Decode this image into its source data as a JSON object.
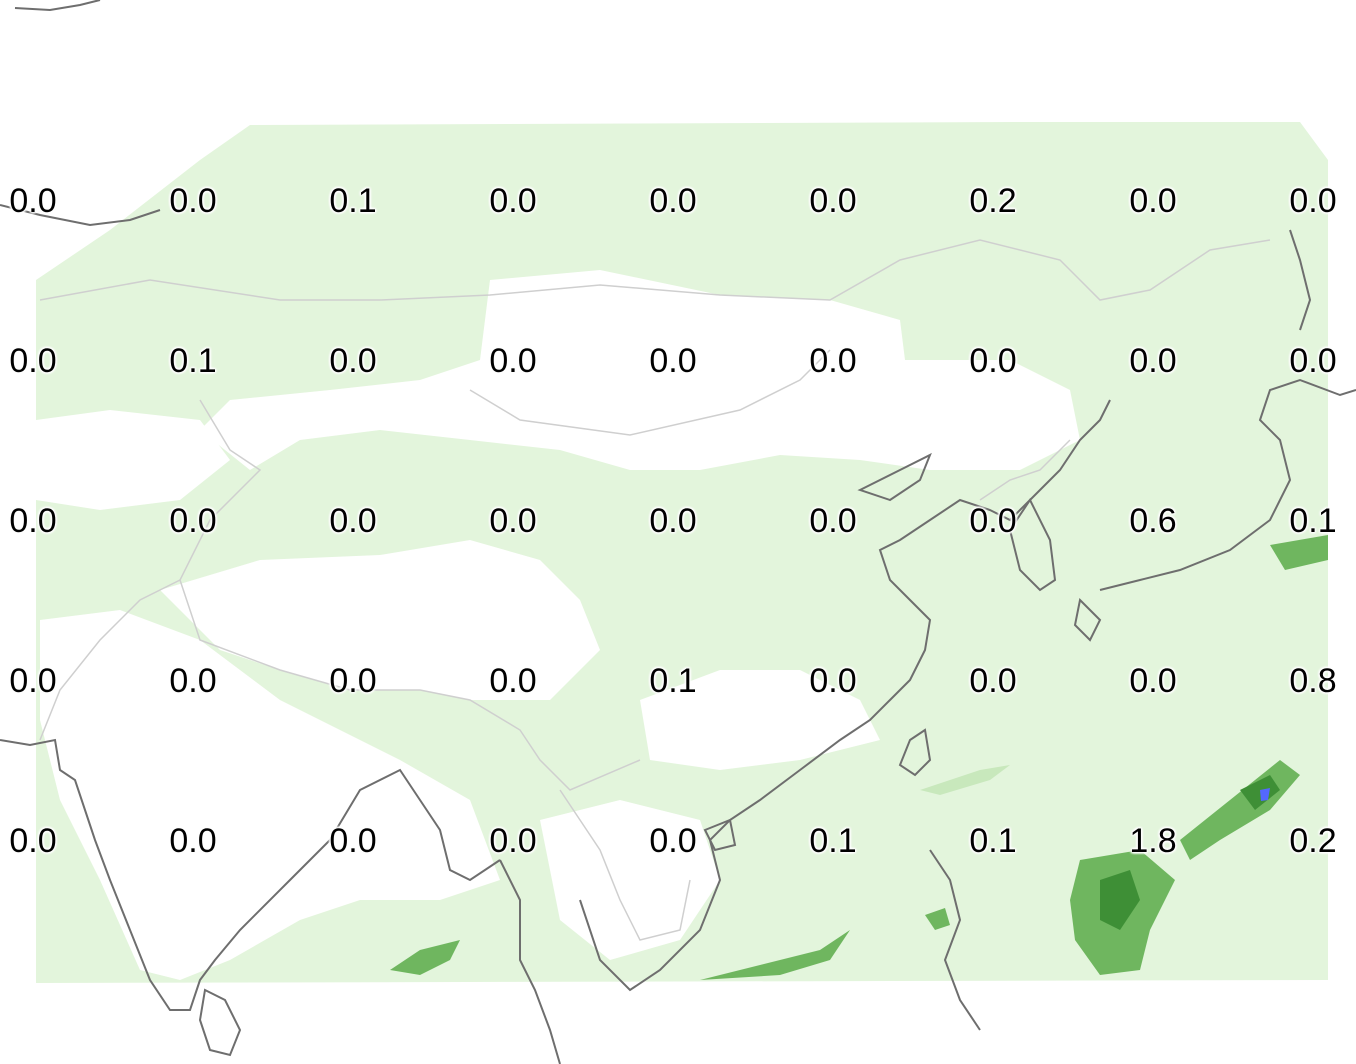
{
  "map": {
    "colors": {
      "background": "#ffffff",
      "light_precip": "#e3f5dc",
      "medium_precip": "#c8e8bc",
      "moderate_precip": "#6fb65f",
      "heavy_precip": "#3e8f36",
      "extreme_precip": "#5468ff",
      "coastline": "#6e6e6e",
      "border": "#cfcfcf"
    },
    "grid": {
      "rows": [
        [
          "0.0",
          "0.0",
          "0.1",
          "0.0",
          "0.0",
          "0.0",
          "0.2",
          "0.0",
          "0.0"
        ],
        [
          "0.0",
          "0.1",
          "0.0",
          "0.0",
          "0.0",
          "0.0",
          "0.0",
          "0.0",
          "0.0"
        ],
        [
          "0.0",
          "0.0",
          "0.0",
          "0.0",
          "0.0",
          "0.0",
          "0.0",
          "0.6",
          "0.1"
        ],
        [
          "0.0",
          "0.0",
          "0.0",
          "0.0",
          "0.1",
          "0.0",
          "0.0",
          "0.0",
          "0.8"
        ],
        [
          "0.0",
          "0.0",
          "0.0",
          "0.0",
          "0.0",
          "0.1",
          "0.1",
          "1.8",
          "0.2"
        ]
      ]
    }
  }
}
